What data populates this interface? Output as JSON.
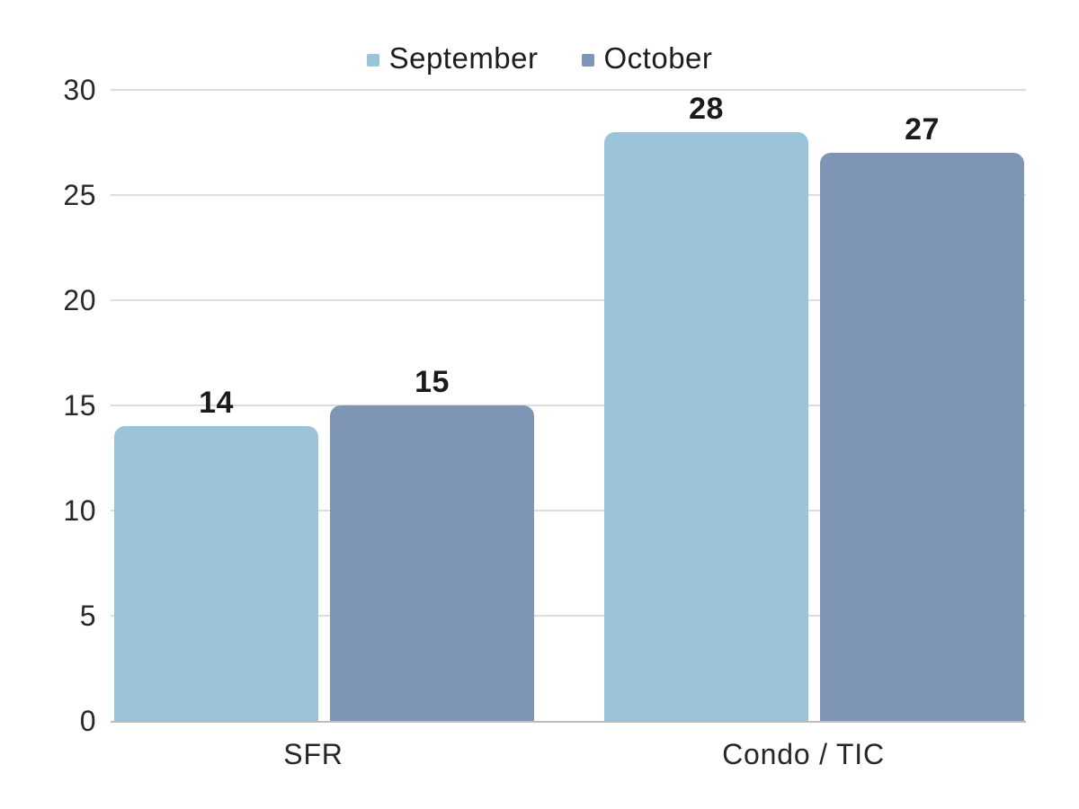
{
  "chart_data": {
    "type": "bar",
    "title": "",
    "categories": [
      "SFR",
      "Condo / TIC"
    ],
    "series": [
      {
        "name": "September",
        "color": "#9bc4da",
        "values": [
          14,
          28
        ]
      },
      {
        "name": "October",
        "color": "#7e95b6",
        "values": [
          15,
          27
        ]
      }
    ],
    "xlabel": "",
    "ylabel": "",
    "ylim": [
      0,
      30
    ],
    "yticks": [
      0,
      5,
      10,
      15,
      20,
      25,
      30
    ],
    "grid": true,
    "legend_position": "top",
    "value_labels": [
      14,
      15,
      28,
      27
    ],
    "colors": {
      "gridline": "#dddddd",
      "baseline": "#bdbdbd",
      "text": "#1d1d1d"
    }
  }
}
